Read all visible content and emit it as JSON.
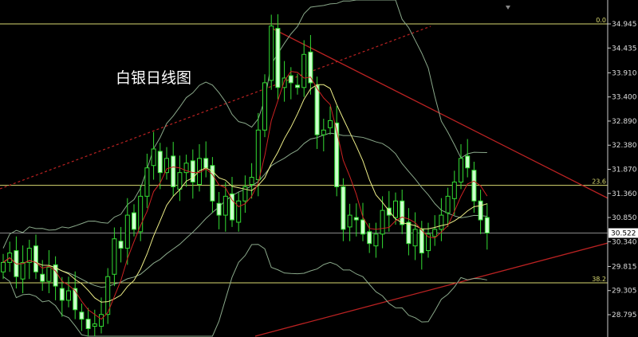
{
  "title": "白银日线图",
  "chart_data": {
    "type": "candlestick",
    "title": "白银日线图",
    "ylim": [
      28.4,
      35.5
    ],
    "y_ticks": [
      "34.945",
      "34.435",
      "33.910",
      "33.400",
      "32.890",
      "32.380",
      "31.870",
      "31.360",
      "30.850",
      "30.340",
      "29.815",
      "29.305",
      "28.795"
    ],
    "current_price": "30.522",
    "fib_levels": [
      {
        "label": "0.0",
        "price": 34.945
      },
      {
        "label": "23.6",
        "price": 31.53
      },
      {
        "label": "38.2",
        "price": 29.47
      }
    ],
    "close": [
      29.9,
      30.1,
      29.6,
      29.9,
      30.2,
      29.7,
      29.5,
      29.8,
      29.4,
      29.1,
      29.3,
      28.9,
      28.7,
      28.5,
      28.6,
      28.8,
      29.6,
      30.4,
      30.2,
      30.9,
      30.6,
      31.3,
      31.9,
      32.3,
      31.8,
      32.1,
      31.5,
      31.8,
      32.0,
      31.6,
      32.1,
      31.9,
      31.2,
      30.9,
      31.3,
      30.8,
      31.2,
      31.5,
      31.7,
      32.7,
      33.7,
      34.9,
      33.6,
      33.8,
      33.7,
      33.6,
      34.3,
      33.7,
      32.6,
      32.7,
      32.9,
      31.5,
      30.6,
      30.9,
      30.8,
      30.5,
      30.3,
      30.5,
      31.0,
      30.9,
      31.2,
      30.7,
      30.3,
      30.6,
      30.1,
      30.5,
      30.6,
      30.9,
      31.3,
      31.6,
      32.1,
      31.9,
      31.2,
      30.8,
      30.522
    ],
    "indicators": [
      "MA5",
      "MA10",
      "Bollinger Bands"
    ],
    "colors": {
      "background": "#000000",
      "candle": "#33dd33",
      "bear_fill": "#ccffcc",
      "ma_fast": "#cc2222",
      "ma_slow": "#eeee88",
      "bands": "#8aa88a",
      "fib": "#d8d870",
      "trendline": "#bb2222",
      "price_line": "#888888"
    }
  }
}
